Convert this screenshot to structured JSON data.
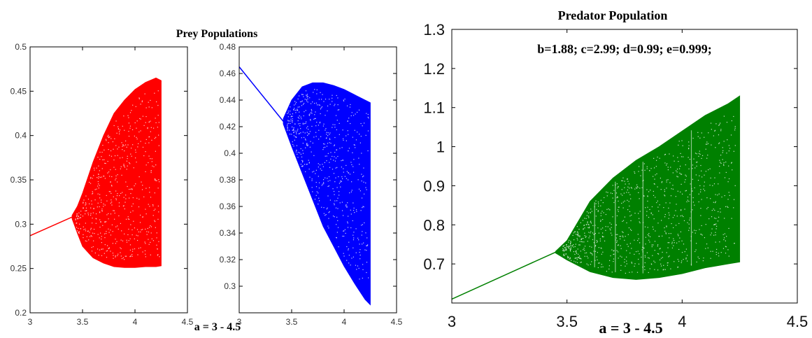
{
  "prey_title": "Prey Populations",
  "prey_xlabel": "a = 3 - 4.5",
  "predator_title": "Predator Population",
  "predator_xlabel": "a = 3 - 4.5",
  "predator_annotation": "b=1.88; c=2.99; d=0.99; e=0.999;",
  "chart_data": [
    {
      "id": "prey1",
      "type": "scatter",
      "color": "#ff0000",
      "xlim": [
        3,
        4.5
      ],
      "ylim": [
        0.2,
        0.5
      ],
      "xticks": [
        "3",
        "3.5",
        "4",
        "4.5"
      ],
      "yticks": [
        "0.2",
        "0.25",
        "0.3",
        "0.35",
        "0.4",
        "0.45",
        "0.5"
      ],
      "stable_branch": {
        "x": [
          3.0,
          3.4
        ],
        "y": [
          0.287,
          0.308
        ]
      },
      "chaotic_band": {
        "x": [
          3.4,
          3.45,
          3.5,
          3.6,
          3.7,
          3.8,
          3.9,
          4.0,
          4.1,
          4.2,
          4.25
        ],
        "low": [
          0.306,
          0.29,
          0.275,
          0.262,
          0.256,
          0.252,
          0.251,
          0.251,
          0.252,
          0.252,
          0.253
        ],
        "high": [
          0.31,
          0.32,
          0.335,
          0.37,
          0.4,
          0.425,
          0.44,
          0.452,
          0.46,
          0.465,
          0.462
        ]
      }
    },
    {
      "id": "prey2",
      "type": "scatter",
      "color": "#0000ff",
      "xlim": [
        3,
        4.5
      ],
      "ylim": [
        0.28,
        0.48
      ],
      "xticks": [
        "3",
        "3.5",
        "4",
        "4.5"
      ],
      "yticks": [
        "0.3",
        "0.32",
        "0.34",
        "0.36",
        "0.38",
        "0.4",
        "0.42",
        "0.44",
        "0.46",
        "0.48"
      ],
      "stable_branch": {
        "x": [
          3.0,
          3.42
        ],
        "y": [
          0.465,
          0.424
        ]
      },
      "chaotic_band": {
        "x": [
          3.42,
          3.5,
          3.6,
          3.7,
          3.8,
          3.9,
          4.0,
          4.1,
          4.2,
          4.25
        ],
        "low": [
          0.422,
          0.405,
          0.385,
          0.365,
          0.345,
          0.33,
          0.315,
          0.302,
          0.29,
          0.286
        ],
        "high": [
          0.426,
          0.44,
          0.45,
          0.453,
          0.453,
          0.451,
          0.448,
          0.444,
          0.44,
          0.438
        ]
      }
    },
    {
      "id": "predator",
      "type": "scatter",
      "color": "#008000",
      "xlim": [
        3,
        4.5
      ],
      "ylim": [
        0.6,
        1.3
      ],
      "xticks": [
        "3",
        "3.5",
        "4",
        "4.5"
      ],
      "yticks": [
        "0.7",
        "0.8",
        "0.9",
        "1",
        "1.1",
        "1.2",
        "1.3"
      ],
      "stable_branch": {
        "x": [
          3.0,
          3.45
        ],
        "y": [
          0.61,
          0.73
        ]
      },
      "chaotic_band": {
        "x": [
          3.45,
          3.5,
          3.6,
          3.7,
          3.8,
          3.9,
          4.0,
          4.1,
          4.2,
          4.25
        ],
        "low": [
          0.728,
          0.71,
          0.68,
          0.665,
          0.66,
          0.665,
          0.675,
          0.69,
          0.7,
          0.705
        ],
        "high": [
          0.732,
          0.76,
          0.86,
          0.92,
          0.965,
          1.0,
          1.04,
          1.08,
          1.11,
          1.13
        ]
      }
    }
  ]
}
